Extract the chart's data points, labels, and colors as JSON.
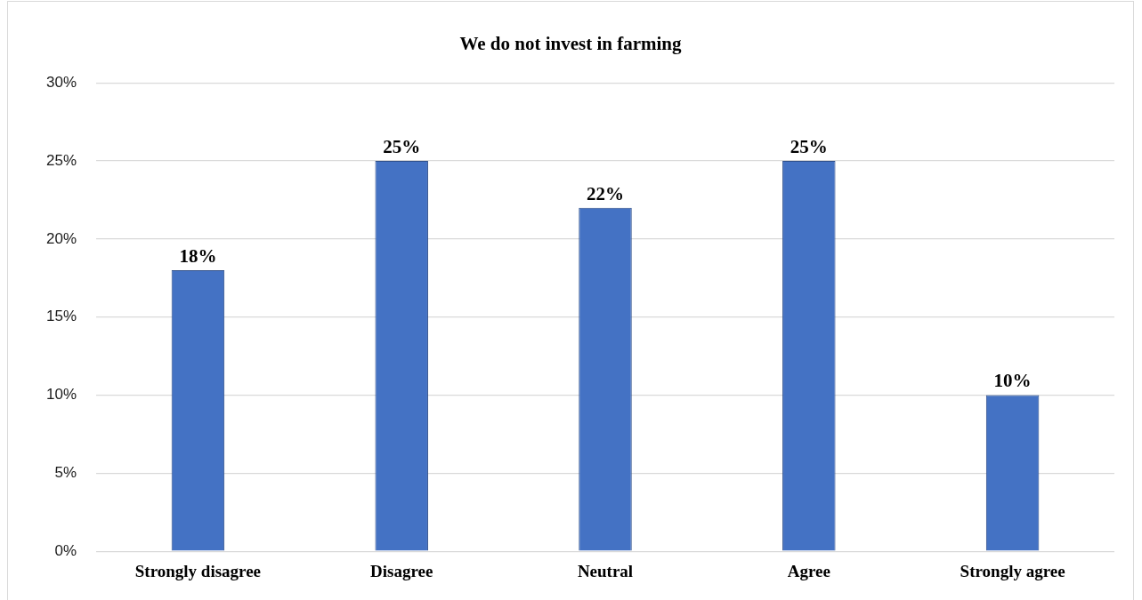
{
  "chart_data": {
    "type": "bar",
    "title": "We do not invest in farming",
    "categories": [
      "Strongly disagree",
      "Disagree",
      "Neutral",
      "Agree",
      "Strongly agree"
    ],
    "values": [
      18,
      25,
      22,
      25,
      10
    ],
    "value_labels": [
      "18%",
      "25%",
      "22%",
      "25%",
      "10%"
    ],
    "color": "#4472c4",
    "ylim": [
      0,
      30
    ],
    "yticks": [
      {
        "value": 0,
        "label": "0%"
      },
      {
        "value": 5,
        "label": "5%"
      },
      {
        "value": 10,
        "label": "10%"
      },
      {
        "value": 15,
        "label": "15%"
      },
      {
        "value": 20,
        "label": "20%"
      },
      {
        "value": 25,
        "label": "25%"
      },
      {
        "value": 30,
        "label": "30%"
      }
    ],
    "grid": "y"
  }
}
